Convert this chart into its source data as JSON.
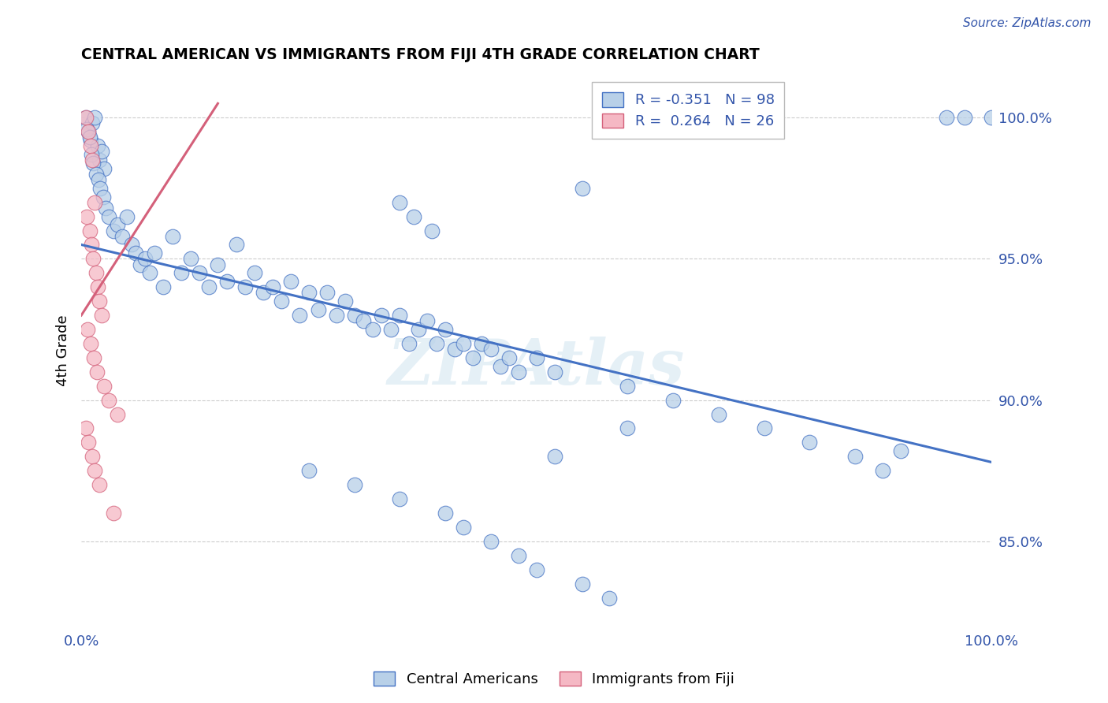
{
  "title": "CENTRAL AMERICAN VS IMMIGRANTS FROM FIJI 4TH GRADE CORRELATION CHART",
  "source_text": "Source: ZipAtlas.com",
  "ylabel": "4th Grade",
  "xlim": [
    0.0,
    100.0
  ],
  "ylim": [
    82.0,
    101.5
  ],
  "right_yticks": [
    85.0,
    90.0,
    95.0,
    100.0
  ],
  "blue_R": -0.351,
  "blue_N": 98,
  "pink_R": 0.264,
  "pink_N": 26,
  "blue_color": "#b8d0e8",
  "pink_color": "#f5b8c4",
  "blue_line_color": "#4472c4",
  "pink_line_color": "#d4607a",
  "legend_label_blue": "Central Americans",
  "legend_label_pink": "Immigrants from Fiji",
  "watermark": "ZIPAtlas",
  "blue_line_x0": 0.0,
  "blue_line_y0": 95.5,
  "blue_line_x1": 100.0,
  "blue_line_y1": 87.8,
  "pink_line_x0": 0.0,
  "pink_line_y0": 93.0,
  "pink_line_x1": 15.0,
  "pink_line_y1": 100.5,
  "blue_scatter_x": [
    0.5,
    0.8,
    1.0,
    1.2,
    1.5,
    1.8,
    2.0,
    2.2,
    2.5,
    0.6,
    0.9,
    1.1,
    1.3,
    1.6,
    1.9,
    2.1,
    2.4,
    2.7,
    3.0,
    3.5,
    4.0,
    4.5,
    5.0,
    5.5,
    6.0,
    6.5,
    7.0,
    7.5,
    8.0,
    9.0,
    10.0,
    11.0,
    12.0,
    13.0,
    14.0,
    15.0,
    16.0,
    17.0,
    18.0,
    19.0,
    20.0,
    21.0,
    22.0,
    23.0,
    24.0,
    25.0,
    26.0,
    27.0,
    28.0,
    29.0,
    30.0,
    31.0,
    32.0,
    33.0,
    34.0,
    35.0,
    36.0,
    37.0,
    38.0,
    39.0,
    40.0,
    41.0,
    42.0,
    43.0,
    44.0,
    45.0,
    46.0,
    47.0,
    48.0,
    50.0,
    35.0,
    36.5,
    38.5,
    52.0,
    55.0,
    60.0,
    65.0,
    70.0,
    75.0,
    80.0,
    85.0,
    88.0,
    90.0,
    95.0,
    97.0,
    100.0,
    25.0,
    30.0,
    35.0,
    40.0,
    42.0,
    45.0,
    48.0,
    50.0,
    52.0,
    55.0,
    58.0,
    60.0
  ],
  "blue_scatter_y": [
    100.0,
    99.5,
    99.2,
    99.8,
    100.0,
    99.0,
    98.5,
    98.8,
    98.2,
    99.6,
    99.3,
    98.7,
    98.4,
    98.0,
    97.8,
    97.5,
    97.2,
    96.8,
    96.5,
    96.0,
    96.2,
    95.8,
    96.5,
    95.5,
    95.2,
    94.8,
    95.0,
    94.5,
    95.2,
    94.0,
    95.8,
    94.5,
    95.0,
    94.5,
    94.0,
    94.8,
    94.2,
    95.5,
    94.0,
    94.5,
    93.8,
    94.0,
    93.5,
    94.2,
    93.0,
    93.8,
    93.2,
    93.8,
    93.0,
    93.5,
    93.0,
    92.8,
    92.5,
    93.0,
    92.5,
    93.0,
    92.0,
    92.5,
    92.8,
    92.0,
    92.5,
    91.8,
    92.0,
    91.5,
    92.0,
    91.8,
    91.2,
    91.5,
    91.0,
    91.5,
    97.0,
    96.5,
    96.0,
    91.0,
    97.5,
    90.5,
    90.0,
    89.5,
    89.0,
    88.5,
    88.0,
    87.5,
    88.2,
    100.0,
    100.0,
    100.0,
    87.5,
    87.0,
    86.5,
    86.0,
    85.5,
    85.0,
    84.5,
    84.0,
    88.0,
    83.5,
    83.0,
    89.0
  ],
  "pink_scatter_x": [
    0.5,
    0.8,
    1.0,
    1.2,
    1.5,
    0.6,
    0.9,
    1.1,
    1.3,
    1.6,
    1.8,
    2.0,
    2.2,
    0.7,
    1.0,
    1.4,
    1.7,
    2.5,
    3.0,
    4.0,
    0.5,
    0.8,
    1.2,
    1.5,
    2.0,
    3.5
  ],
  "pink_scatter_y": [
    100.0,
    99.5,
    99.0,
    98.5,
    97.0,
    96.5,
    96.0,
    95.5,
    95.0,
    94.5,
    94.0,
    93.5,
    93.0,
    92.5,
    92.0,
    91.5,
    91.0,
    90.5,
    90.0,
    89.5,
    89.0,
    88.5,
    88.0,
    87.5,
    87.0,
    86.0
  ]
}
